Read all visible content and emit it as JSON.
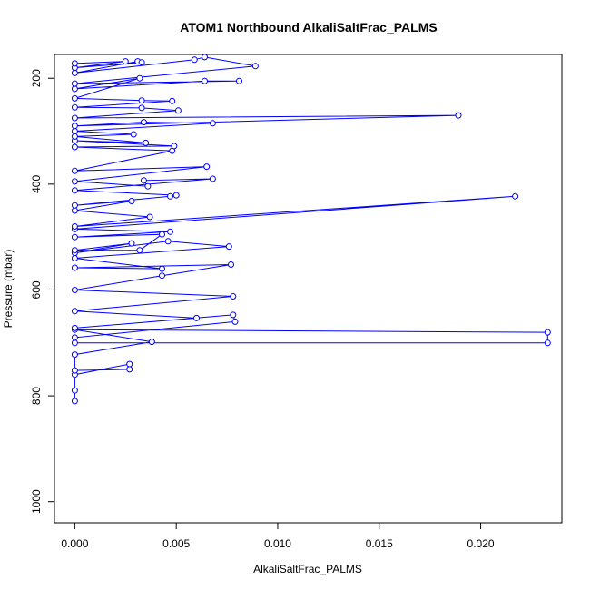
{
  "chart_data": {
    "type": "scatter",
    "title": "ATOM1 Northbound AlkaliSaltFrac_PALMS",
    "xlabel": "AlkaliSaltFrac_PALMS",
    "ylabel": "Pressure (mbar)",
    "xlim": [
      -0.001,
      0.024
    ],
    "ylim": [
      1040,
      155
    ],
    "y_reversed": true,
    "grid": false,
    "x_ticks": [
      0,
      0.005,
      0.01,
      0.015,
      0.02
    ],
    "x_tick_labels": [
      "0.000",
      "0.005",
      "0.010",
      "0.015",
      "0.020"
    ],
    "y_ticks": [
      200,
      400,
      600,
      800,
      1000
    ],
    "y_tick_labels": [
      "200",
      "400",
      "600",
      "800",
      "1000"
    ],
    "series": [
      {
        "color": "#0000ff",
        "style": "line+open-circles",
        "points": [
          [
            0,
            810
          ],
          [
            0,
            790
          ],
          [
            0,
            760
          ],
          [
            0.0027,
            740
          ],
          [
            0.0027,
            750
          ],
          [
            0,
            752
          ],
          [
            0,
            722
          ],
          [
            0.0038,
            698
          ],
          [
            0,
            675
          ],
          [
            0.0233,
            680
          ],
          [
            0.0233,
            700
          ],
          [
            0,
            700
          ],
          [
            0,
            690
          ],
          [
            0.0079,
            660
          ],
          [
            0.0078,
            647
          ],
          [
            0,
            672
          ],
          [
            0.006,
            653
          ],
          [
            0,
            640
          ],
          [
            0.0078,
            612
          ],
          [
            0,
            600
          ],
          [
            0.0043,
            573
          ],
          [
            0.0077,
            552
          ],
          [
            0,
            558
          ],
          [
            0.0043,
            560
          ],
          [
            0,
            540
          ],
          [
            0.0076,
            518
          ],
          [
            0.0046,
            508
          ],
          [
            0,
            530
          ],
          [
            0.0028,
            512
          ],
          [
            0,
            525
          ],
          [
            0.0032,
            525
          ],
          [
            0.0043,
            495
          ],
          [
            0,
            500
          ],
          [
            0.0047,
            490
          ],
          [
            0,
            485
          ],
          [
            0.0217,
            423
          ],
          [
            0,
            480
          ],
          [
            0.0037,
            462
          ],
          [
            0,
            450
          ],
          [
            0.0028,
            432
          ],
          [
            0,
            440
          ],
          [
            0.0047,
            423
          ],
          [
            0.005,
            421
          ],
          [
            0,
            412
          ],
          [
            0.0068,
            390
          ],
          [
            0.0034,
            393
          ],
          [
            0.0036,
            404
          ],
          [
            0,
            395
          ],
          [
            0.0065,
            367
          ],
          [
            0,
            375
          ],
          [
            0.0048,
            337
          ],
          [
            0,
            330
          ],
          [
            0.0049,
            328
          ],
          [
            0,
            318
          ],
          [
            0.0035,
            322
          ],
          [
            0,
            310
          ],
          [
            0.0029,
            306
          ],
          [
            0,
            300
          ],
          [
            0.0068,
            285
          ],
          [
            0.0034,
            283
          ],
          [
            0,
            290
          ],
          [
            0.0189,
            270
          ],
          [
            0,
            275
          ],
          [
            0.0051,
            261
          ],
          [
            0.0033,
            256
          ],
          [
            0,
            255
          ],
          [
            0.0048,
            243
          ],
          [
            0.0033,
            242
          ],
          [
            0,
            238
          ],
          [
            0.0032,
            200
          ],
          [
            0,
            220
          ],
          [
            0.0064,
            205
          ],
          [
            0.0081,
            205
          ],
          [
            0,
            210
          ],
          [
            0.0089,
            177
          ],
          [
            0.0064,
            160
          ],
          [
            0.0059,
            165
          ],
          [
            0,
            190
          ],
          [
            0.0031,
            168
          ],
          [
            0.0033,
            170
          ],
          [
            0,
            180
          ],
          [
            0.0025,
            168
          ],
          [
            0,
            172
          ]
        ]
      }
    ]
  }
}
